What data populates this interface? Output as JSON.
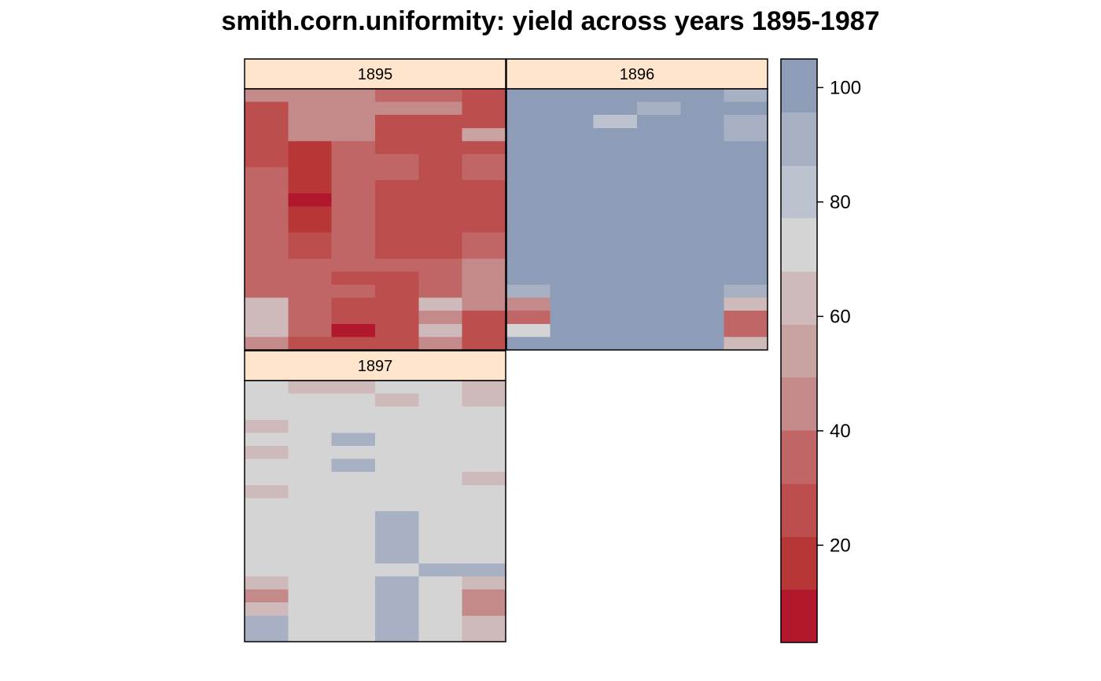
{
  "chart_data": {
    "type": "heatmap",
    "title": "smith.corn.uniformity: yield across years 1895-1987",
    "xlabel": "",
    "ylabel": "",
    "grid": false,
    "legend": "right colorkey",
    "n_cols": 6,
    "n_rows": 20,
    "panels": [
      {
        "year": "1895",
        "values": [
          [
            48,
            48,
            48,
            36,
            36,
            24
          ],
          [
            28,
            42,
            42,
            42,
            42,
            24
          ],
          [
            28,
            42,
            42,
            28,
            28,
            28
          ],
          [
            28,
            42,
            42,
            28,
            28,
            52
          ],
          [
            28,
            18,
            36,
            28,
            28,
            28
          ],
          [
            28,
            18,
            36,
            36,
            28,
            36
          ],
          [
            36,
            18,
            36,
            36,
            28,
            36
          ],
          [
            36,
            18,
            36,
            28,
            28,
            28
          ],
          [
            36,
            12,
            36,
            28,
            28,
            28
          ],
          [
            36,
            18,
            36,
            28,
            28,
            28
          ],
          [
            36,
            18,
            36,
            28,
            28,
            28
          ],
          [
            36,
            24,
            36,
            28,
            28,
            36
          ],
          [
            36,
            24,
            36,
            28,
            28,
            36
          ],
          [
            36,
            36,
            36,
            36,
            36,
            48
          ],
          [
            36,
            36,
            28,
            28,
            36,
            48
          ],
          [
            36,
            36,
            36,
            28,
            36,
            48
          ],
          [
            60,
            36,
            28,
            28,
            60,
            48
          ],
          [
            60,
            36,
            28,
            28,
            48,
            28
          ],
          [
            60,
            36,
            12,
            28,
            60,
            28
          ],
          [
            48,
            28,
            28,
            28,
            48,
            28
          ]
        ]
      },
      {
        "year": "1896",
        "values": [
          [
            96,
            96,
            96,
            96,
            96,
            88
          ],
          [
            96,
            96,
            96,
            88,
            96,
            96
          ],
          [
            96,
            96,
            82,
            96,
            96,
            88
          ],
          [
            96,
            96,
            96,
            96,
            96,
            88
          ],
          [
            104,
            104,
            104,
            104,
            104,
            96
          ],
          [
            104,
            104,
            104,
            104,
            96,
            96
          ],
          [
            96,
            104,
            104,
            104,
            104,
            96
          ],
          [
            96,
            96,
            104,
            96,
            96,
            96
          ],
          [
            104,
            104,
            104,
            104,
            104,
            96
          ],
          [
            104,
            104,
            104,
            104,
            104,
            104
          ],
          [
            96,
            104,
            104,
            104,
            96,
            104
          ],
          [
            96,
            104,
            104,
            96,
            104,
            96
          ],
          [
            96,
            104,
            104,
            104,
            104,
            96
          ],
          [
            104,
            104,
            96,
            104,
            104,
            96
          ],
          [
            96,
            104,
            104,
            104,
            104,
            96
          ],
          [
            88,
            104,
            104,
            96,
            96,
            88
          ],
          [
            48,
            96,
            96,
            96,
            96,
            64
          ],
          [
            36,
            104,
            96,
            96,
            96,
            36
          ],
          [
            72,
            104,
            96,
            96,
            96,
            36
          ],
          [
            96,
            96,
            104,
            104,
            96,
            64
          ]
        ]
      },
      {
        "year": "1897",
        "values": [
          [
            72,
            64,
            64,
            72,
            72,
            64
          ],
          [
            72,
            72,
            72,
            64,
            72,
            64
          ],
          [
            72,
            72,
            72,
            72,
            72,
            72
          ],
          [
            64,
            72,
            72,
            72,
            72,
            72
          ],
          [
            72,
            72,
            88,
            72,
            72,
            72
          ],
          [
            64,
            72,
            72,
            72,
            72,
            72
          ],
          [
            72,
            72,
            88,
            72,
            72,
            72
          ],
          [
            72,
            72,
            72,
            72,
            72,
            64
          ],
          [
            64,
            72,
            72,
            72,
            72,
            72
          ],
          [
            72,
            72,
            72,
            72,
            72,
            72
          ],
          [
            72,
            72,
            72,
            88,
            72,
            72
          ],
          [
            72,
            72,
            72,
            88,
            72,
            72
          ],
          [
            72,
            72,
            72,
            88,
            72,
            72
          ],
          [
            72,
            72,
            72,
            88,
            72,
            72
          ],
          [
            72,
            72,
            72,
            72,
            88,
            88
          ],
          [
            60,
            72,
            72,
            88,
            72,
            64
          ],
          [
            48,
            72,
            72,
            88,
            72,
            48
          ],
          [
            64,
            72,
            72,
            88,
            72,
            48
          ],
          [
            88,
            72,
            72,
            88,
            72,
            64
          ],
          [
            88,
            72,
            72,
            88,
            72,
            64
          ]
        ]
      }
    ],
    "colorkey": {
      "range": [
        3,
        105
      ],
      "breaks": [
        3,
        12.3,
        21.5,
        30.8,
        40.1,
        49.4,
        58.6,
        67.9,
        77.2,
        86.4,
        95.7,
        105
      ],
      "colors": [
        "#B2182B",
        "#B73636",
        "#BC4E4E",
        "#C06666",
        "#C48A8A",
        "#C9A2A2",
        "#CEBABA",
        "#D4D4D4",
        "#BDC3CE",
        "#A8B1C3",
        "#8E9DB7"
      ],
      "ticks": [
        20,
        40,
        60,
        80,
        100
      ],
      "tick_labels": [
        "20",
        "40",
        "60",
        "80",
        "100"
      ]
    }
  }
}
